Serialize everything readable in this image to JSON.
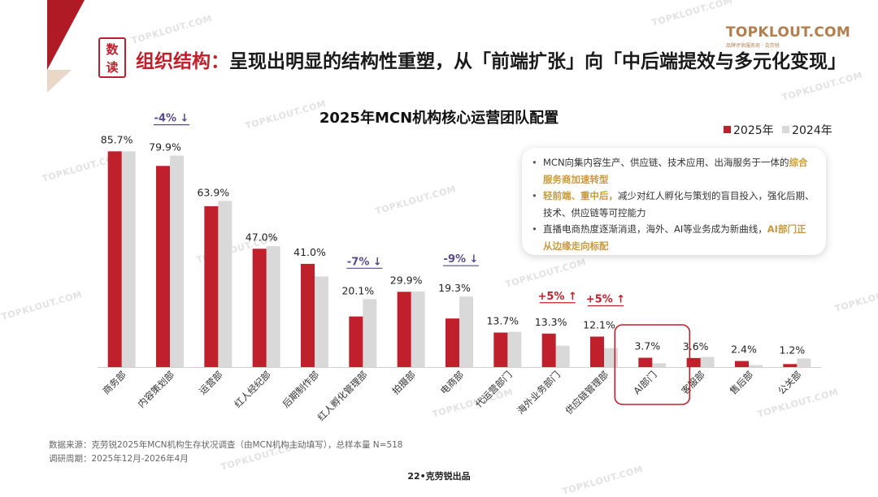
{
  "header": {
    "badge_line1": "数",
    "badge_line2": "读",
    "title_highlight": "组织结构：",
    "title_rest": "呈现出明显的结构性重塑，从「前端扩张」向「中后端提效与多元化变现」"
  },
  "logo": {
    "main": "TOPKLOUT.COM",
    "sub": "品牌评估服务商 · 克劳锐"
  },
  "watermark_text": "TOPKLOUT.COM",
  "colors": {
    "accent": "#c0202b",
    "series_2025": "#c0202b",
    "series_2024": "#d9d9d9",
    "gold": "#c89a3a",
    "annotation_text": "#5a4a8a"
  },
  "info_box": {
    "line1_text": "MCN向集内容生产、供应链、技术应用、出海服务于一体的",
    "line1_bold": "综合服务商加速转型",
    "line2_bold": "轻前端、重中后，",
    "line2_text": "减少对红人孵化与策划的盲目投入，强化后期、技术、供应链等可控能力",
    "line3_text": "直播电商热度逐渐消退，海外、AI等业务成为新曲线，",
    "line3_bold": "AI部门正从边缘走向标配"
  },
  "footer": {
    "source": "数据来源：克劳锐2025年MCN机构生存状况调查（由MCN机构主动填写），总样本量 N=518",
    "period": "调研周期：2025年12月-2026年4月",
    "page": "22•克劳锐出品"
  },
  "chart_data": {
    "type": "bar",
    "title": "2025年MCN机构核心运营团队配置",
    "categories": [
      "商务部",
      "内容策划部",
      "运营部",
      "红人经纪部",
      "后期制作部",
      "红人孵化管理部",
      "拍摄部",
      "电商部",
      "代运营部门",
      "海外业务部门",
      "供应链管理部",
      "AI部门",
      "客服部",
      "售后部",
      "公关部"
    ],
    "series": [
      {
        "name": "2025年",
        "values": [
          85.7,
          79.9,
          63.9,
          47.0,
          41.0,
          20.1,
          29.9,
          19.3,
          13.7,
          13.3,
          12.1,
          3.7,
          3.6,
          2.4,
          1.2
        ]
      },
      {
        "name": "2024年",
        "values": [
          85.7,
          84.0,
          66.0,
          48.0,
          36.0,
          27.0,
          30.0,
          28.0,
          14.0,
          8.5,
          7.5,
          1.5,
          4.0,
          0.8,
          3.4
        ]
      }
    ],
    "data_labels": [
      "85.7%",
      "79.9%",
      "63.9%",
      "47.0%",
      "41.0%",
      "20.1%",
      "29.9%",
      "19.3%",
      "13.7%",
      "13.3%",
      "12.1%",
      "3.7%",
      "3.6%",
      "2.4%",
      "1.2%"
    ],
    "annotations": [
      {
        "category": "内容策划部",
        "text": "-4%",
        "arrow": "↓",
        "color": "#5a4a8a"
      },
      {
        "category": "红人孵化管理部",
        "text": "-7%",
        "arrow": "↓",
        "color": "#5a4a8a"
      },
      {
        "category": "电商部",
        "text": "-9%",
        "arrow": "↓",
        "color": "#5a4a8a"
      },
      {
        "category": "海外业务部门",
        "text": "+5%",
        "arrow": "↑",
        "color": "#c0202b"
      },
      {
        "category": "供应链管理部",
        "text": "+5%",
        "arrow": "↑",
        "color": "#c0202b"
      }
    ],
    "highlighted_category": "AI部门",
    "ylim": [
      0,
      100
    ],
    "legend_position": "top-right",
    "grid": false
  }
}
